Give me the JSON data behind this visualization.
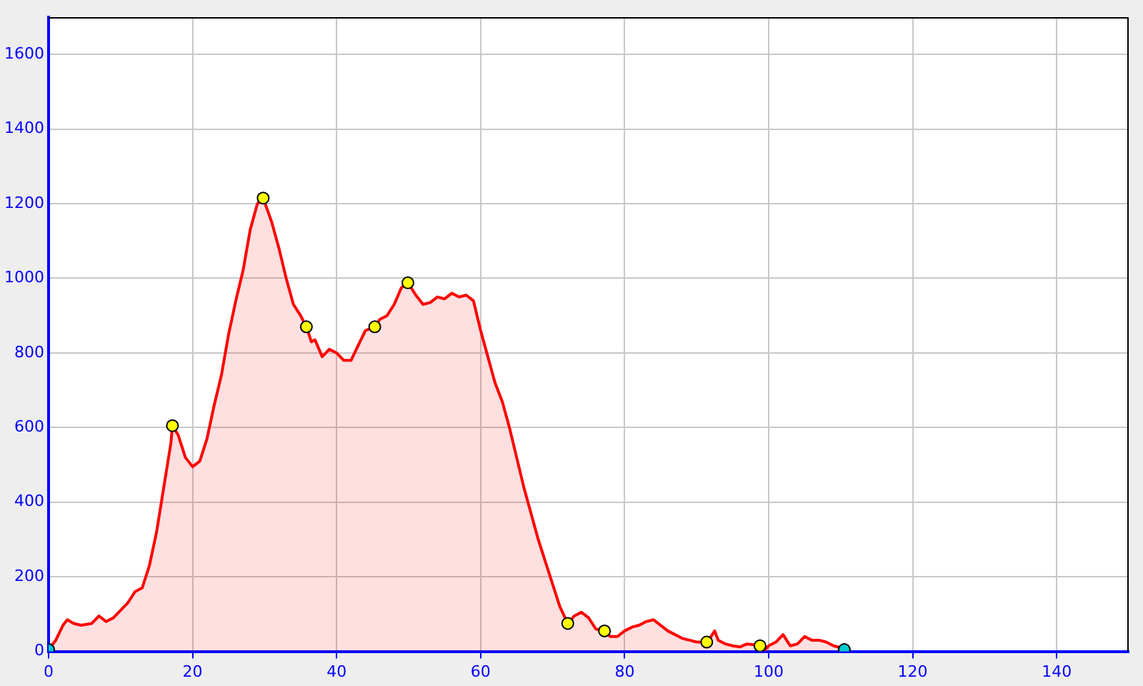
{
  "chart_data": {
    "type": "area",
    "xlim": [
      0,
      150
    ],
    "xticks": [
      0,
      20,
      40,
      60,
      80,
      100,
      120,
      140
    ],
    "ylim": [
      0,
      1700
    ],
    "yticks": [
      0,
      200,
      400,
      600,
      800,
      1000,
      1200,
      1400,
      1600
    ],
    "grid": true,
    "legend": false,
    "series": [
      {
        "color": "#ff0000",
        "x": [
          0,
          1,
          2,
          2.6,
          3.5,
          4.5,
          6,
          7,
          8,
          9,
          10,
          11,
          12,
          13,
          14,
          15,
          16,
          17,
          17.2,
          18,
          19,
          20,
          21,
          22,
          23,
          24,
          25,
          26,
          27,
          28,
          29,
          29.8,
          31,
          32,
          33,
          34,
          35,
          35.8,
          36.5,
          37,
          38,
          39,
          40,
          41,
          42,
          43,
          44,
          45.3,
          46,
          47,
          48,
          49,
          49.9,
          51,
          52,
          53,
          54,
          55,
          56,
          57,
          58,
          59,
          60,
          61,
          62,
          63,
          64,
          65,
          66,
          67,
          68,
          69,
          70,
          71,
          72.1,
          73,
          74,
          75,
          76,
          77.2,
          78,
          79,
          80,
          81,
          82,
          83,
          84,
          85,
          86,
          87,
          88,
          89,
          90,
          91.4,
          92,
          92.5,
          93,
          94,
          95,
          96,
          97,
          98,
          98.8,
          99.5,
          100,
          101,
          102,
          102.5,
          103,
          104,
          105,
          106,
          107,
          108,
          109,
          110,
          110.5
        ],
        "values": [
          5,
          30,
          70,
          85,
          75,
          70,
          75,
          95,
          80,
          90,
          110,
          130,
          160,
          170,
          230,
          320,
          440,
          560,
          605,
          580,
          520,
          495,
          510,
          570,
          660,
          740,
          850,
          940,
          1020,
          1130,
          1200,
          1215,
          1150,
          1080,
          1000,
          930,
          900,
          870,
          830,
          835,
          790,
          810,
          800,
          780,
          780,
          820,
          860,
          870,
          890,
          900,
          930,
          975,
          988,
          955,
          930,
          935,
          950,
          945,
          960,
          950,
          955,
          940,
          860,
          790,
          720,
          670,
          600,
          520,
          440,
          370,
          300,
          240,
          180,
          120,
          75,
          95,
          105,
          90,
          60,
          55,
          40,
          40,
          55,
          65,
          70,
          80,
          85,
          70,
          55,
          45,
          35,
          30,
          25,
          25,
          40,
          55,
          30,
          20,
          15,
          12,
          20,
          18,
          15,
          5,
          15,
          25,
          45,
          30,
          15,
          20,
          40,
          30,
          30,
          25,
          15,
          10,
          5
        ]
      },
      {
        "type": "scatter",
        "marker": "circle",
        "x": [
          0,
          17.2,
          29.8,
          35.8,
          45.3,
          49.9,
          72.1,
          77.2,
          91.4,
          98.8,
          110.5
        ],
        "values": [
          5,
          605,
          1215,
          870,
          870,
          988,
          75,
          55,
          25,
          15,
          5
        ],
        "colors": [
          "#00cccc",
          "#ffff00",
          "#ffff00",
          "#ffff00",
          "#ffff00",
          "#ffff00",
          "#ffff00",
          "#ffff00",
          "#ffff00",
          "#ffff00",
          "#00cccc"
        ]
      }
    ]
  }
}
